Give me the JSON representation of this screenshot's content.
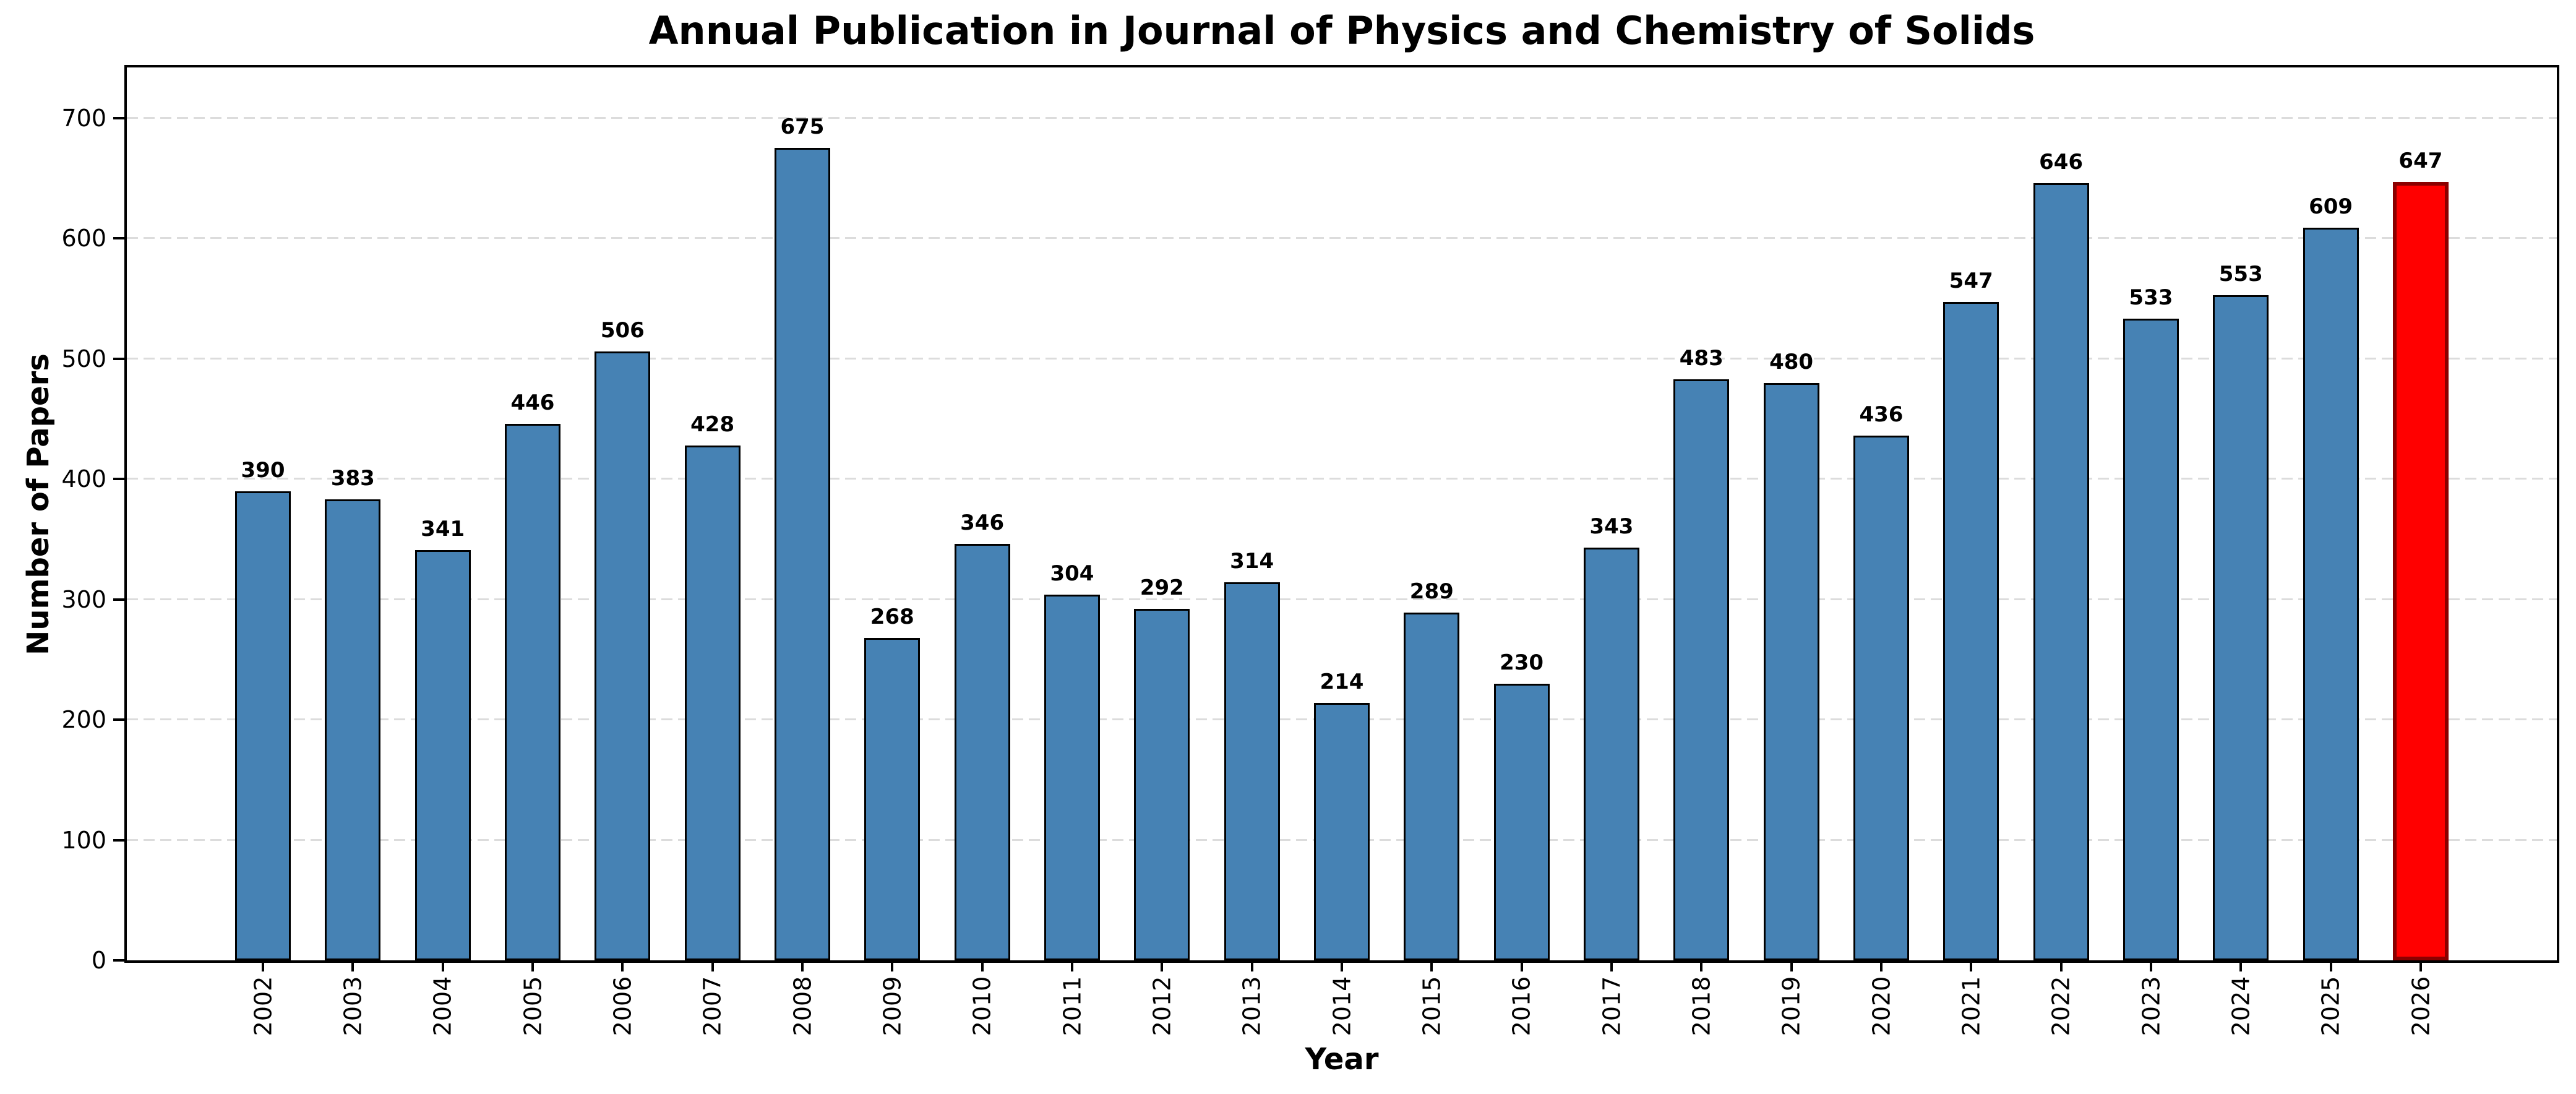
{
  "chart_data": {
    "type": "bar",
    "title": "Annual Publication in Journal of Physics and Chemistry of Solids",
    "xlabel": "Year",
    "ylabel": "Number of Papers",
    "categories": [
      "2002",
      "2003",
      "2004",
      "2005",
      "2006",
      "2007",
      "2008",
      "2009",
      "2010",
      "2011",
      "2012",
      "2013",
      "2014",
      "2015",
      "2016",
      "2017",
      "2018",
      "2019",
      "2020",
      "2021",
      "2022",
      "2023",
      "2024",
      "2025",
      "2026"
    ],
    "values": [
      390,
      383,
      341,
      446,
      506,
      428,
      675,
      268,
      346,
      304,
      292,
      314,
      214,
      289,
      230,
      343,
      483,
      480,
      436,
      547,
      646,
      533,
      553,
      609,
      647
    ],
    "value_labels_shown": true,
    "yticks": [
      0,
      100,
      200,
      300,
      400,
      500,
      600,
      700
    ],
    "ylim": [
      0,
      742
    ],
    "grid": "horizontal-dashed",
    "legend": "none",
    "colors": {
      "bar_fill": "#4682B4",
      "bar_edge": "#000000",
      "highlight_fill": "#FF0000",
      "highlight_edge": "#8B0000",
      "gridline": "#DCDCDC",
      "text": "#000000",
      "background": "#FFFFFF"
    },
    "highlight_category": "2026"
  }
}
